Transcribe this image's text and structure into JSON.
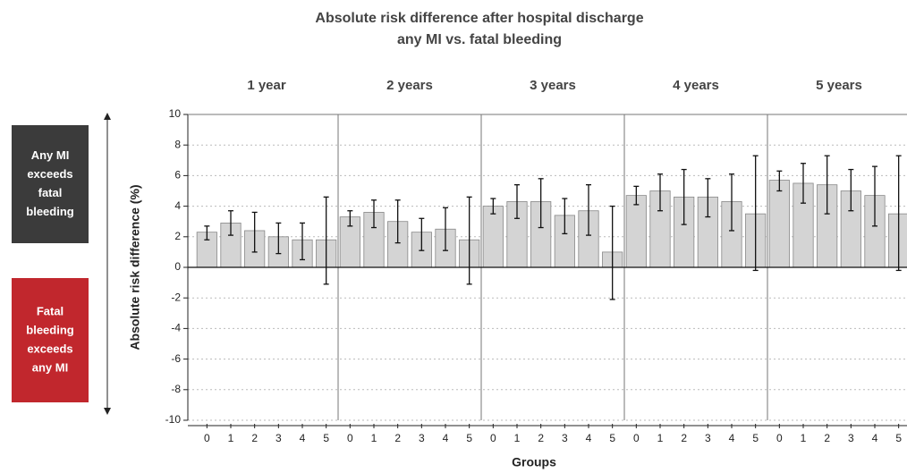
{
  "chart_data": {
    "type": "bar",
    "title": [
      "Absolute risk difference after hospital discharge",
      "any MI vs. fatal bleeding"
    ],
    "ylabel": "Absolute risk difference (%)",
    "xlabel": "Groups",
    "ylim": [
      -10,
      10
    ],
    "yticks": [
      -10,
      -8,
      -6,
      -4,
      -2,
      0,
      2,
      4,
      6,
      8,
      10
    ],
    "grid": true,
    "color": "#d4d4d4",
    "panels": [
      {
        "name": "1 year",
        "categories": [
          "0",
          "1",
          "2",
          "3",
          "4",
          "5"
        ],
        "values": [
          2.3,
          2.9,
          2.4,
          2.0,
          1.8,
          1.8
        ],
        "lower": [
          1.8,
          2.1,
          1.0,
          0.9,
          0.5,
          -1.1
        ],
        "upper": [
          2.7,
          3.7,
          3.6,
          2.9,
          2.9,
          4.6
        ]
      },
      {
        "name": "2 years",
        "categories": [
          "0",
          "1",
          "2",
          "3",
          "4",
          "5"
        ],
        "values": [
          3.3,
          3.6,
          3.0,
          2.3,
          2.5,
          1.8
        ],
        "lower": [
          2.7,
          2.6,
          1.6,
          1.1,
          1.1,
          -1.1
        ],
        "upper": [
          3.7,
          4.4,
          4.4,
          3.2,
          3.9,
          4.6
        ]
      },
      {
        "name": "3 years",
        "categories": [
          "0",
          "1",
          "2",
          "3",
          "4",
          "5"
        ],
        "values": [
          4.0,
          4.3,
          4.3,
          3.4,
          3.7,
          1.0
        ],
        "lower": [
          3.5,
          3.2,
          2.6,
          2.2,
          2.1,
          -2.1
        ],
        "upper": [
          4.5,
          5.4,
          5.8,
          4.5,
          5.4,
          4.0
        ]
      },
      {
        "name": "4 years",
        "categories": [
          "0",
          "1",
          "2",
          "3",
          "4",
          "5"
        ],
        "values": [
          4.7,
          5.0,
          4.6,
          4.6,
          4.3,
          3.5
        ],
        "lower": [
          4.1,
          3.7,
          2.8,
          3.3,
          2.4,
          -0.2
        ],
        "upper": [
          5.3,
          6.1,
          6.4,
          5.8,
          6.1,
          7.3
        ]
      },
      {
        "name": "5 years",
        "categories": [
          "0",
          "1",
          "2",
          "3",
          "4",
          "5"
        ],
        "values": [
          5.7,
          5.5,
          5.4,
          5.0,
          4.7,
          3.5
        ],
        "lower": [
          5.0,
          4.2,
          3.5,
          3.7,
          2.7,
          -0.2
        ],
        "upper": [
          6.3,
          6.8,
          7.3,
          6.4,
          6.6,
          7.3
        ]
      }
    ],
    "annotations": [
      {
        "lines": [
          "Any MI",
          "exceeds",
          "fatal",
          "bleeding"
        ],
        "color": "#3b3b3b"
      },
      {
        "lines": [
          "Fatal",
          "bleeding",
          "exceeds",
          "any MI"
        ],
        "color": "#c1272d"
      }
    ]
  }
}
